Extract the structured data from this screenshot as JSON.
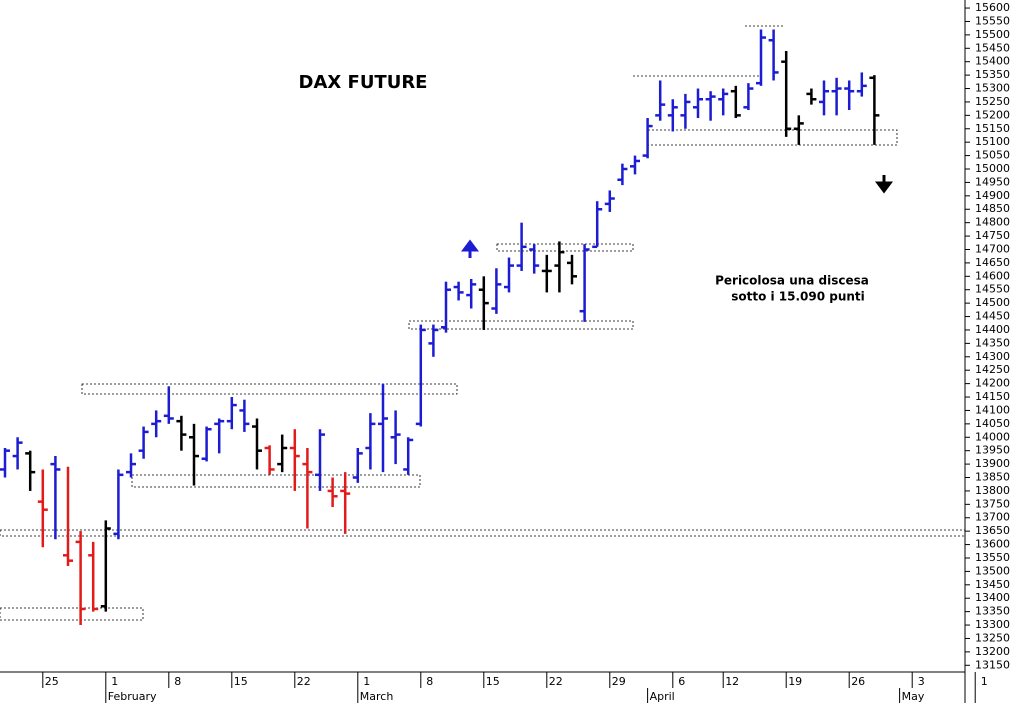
{
  "chart_data": {
    "type": "ohlc",
    "title": "DAX FUTURE",
    "annotation": [
      "Pericolosa una discesa",
      "sotto i 15.090 punti"
    ],
    "categories": [
      null,
      null,
      null,
      "25",
      null,
      null,
      null,
      null,
      "1",
      null,
      null,
      null,
      null,
      "8",
      null,
      null,
      null,
      null,
      "15",
      null,
      null,
      null,
      null,
      "22",
      null,
      null,
      null,
      null,
      "1",
      null,
      null,
      null,
      null,
      "8",
      null,
      null,
      null,
      null,
      "15",
      null,
      null,
      null,
      null,
      "22",
      null,
      null,
      null,
      null,
      "29",
      null,
      null,
      null,
      null,
      "6",
      null,
      null,
      null,
      "12",
      null,
      null,
      null,
      null,
      "19",
      null,
      null,
      null,
      null,
      "26",
      null,
      null,
      null,
      null,
      "3",
      null,
      null,
      null,
      null,
      "1"
    ],
    "months": [
      null,
      null,
      null,
      null,
      null,
      null,
      null,
      null,
      "February",
      null,
      null,
      null,
      null,
      null,
      null,
      null,
      null,
      null,
      null,
      null,
      null,
      null,
      null,
      null,
      null,
      null,
      null,
      null,
      "March",
      null,
      null,
      null,
      null,
      null,
      null,
      null,
      null,
      null,
      null,
      null,
      null,
      null,
      null,
      null,
      null,
      null,
      null,
      null,
      null,
      null,
      null,
      "April",
      null,
      null,
      null,
      null,
      null,
      null,
      null,
      null,
      null,
      null,
      null,
      null,
      null,
      null,
      null,
      null,
      null,
      null,
      null,
      "May",
      null,
      null,
      null,
      null,
      null
    ],
    "open": [
      13880,
      13930,
      13940,
      13760,
      13900,
      13560,
      13610,
      13560,
      13370,
      13640,
      13870,
      13950,
      14050,
      14080,
      14060,
      14000,
      13920,
      14050,
      14060,
      14100,
      14040,
      13960,
      13900,
      13960,
      13900,
      13860,
      13800,
      13800,
      13850,
      13960,
      14050,
      14000,
      13880,
      14050,
      14350,
      14410,
      14560,
      14530,
      14550,
      14480,
      14560,
      14640,
      14700,
      14620,
      14640,
      14650,
      14470,
      14710,
      14870,
      14960,
      15010,
      15050,
      15200,
      15200,
      15200,
      15230,
      15260,
      15260,
      15290,
      15230,
      15320,
      15480,
      15400,
      15150,
      15280,
      15250,
      15290,
      15300,
      15290,
      15340,
      null,
      null,
      null,
      null,
      null,
      null,
      null
    ],
    "high": [
      13960,
      14000,
      13950,
      13880,
      13930,
      13890,
      13650,
      13610,
      13690,
      13880,
      13940,
      14040,
      14100,
      14190,
      14080,
      14050,
      14040,
      14070,
      14150,
      14140,
      14070,
      13970,
      14010,
      14030,
      13960,
      14030,
      13850,
      13870,
      13960,
      14090,
      14200,
      14100,
      14000,
      14420,
      14420,
      14580,
      14580,
      14590,
      14600,
      14630,
      14670,
      14800,
      14720,
      14680,
      14730,
      14680,
      14720,
      14880,
      14920,
      15020,
      15050,
      15190,
      15330,
      15260,
      15280,
      15300,
      15290,
      15300,
      15310,
      15320,
      15520,
      15520,
      15440,
      15200,
      15300,
      15330,
      15340,
      15330,
      15360,
      15350,
      null,
      null,
      null,
      null,
      null,
      null,
      null
    ],
    "low": [
      13850,
      13880,
      13800,
      13590,
      13620,
      13520,
      13300,
      13350,
      13350,
      13620,
      13850,
      13920,
      14000,
      14050,
      13950,
      13820,
      13910,
      13940,
      14030,
      14020,
      13880,
      13860,
      13870,
      13800,
      13660,
      13800,
      13740,
      13640,
      13830,
      13880,
      13870,
      13900,
      13860,
      14040,
      14300,
      14390,
      14510,
      14480,
      14400,
      14460,
      14540,
      14620,
      14610,
      14540,
      14540,
      14570,
      14430,
      14710,
      14840,
      14940,
      14980,
      15040,
      15180,
      15140,
      15150,
      15190,
      15180,
      15200,
      15190,
      15220,
      15310,
      15330,
      15120,
      15090,
      15240,
      15200,
      15200,
      15220,
      15270,
      15090,
      null,
      null,
      null,
      null,
      null,
      null,
      null
    ],
    "close": [
      13950,
      13980,
      13870,
      13730,
      13880,
      13540,
      13360,
      13360,
      13660,
      13860,
      13900,
      14020,
      14060,
      14070,
      14010,
      13930,
      14030,
      14060,
      14120,
      14050,
      13950,
      13880,
      13960,
      13930,
      13870,
      14010,
      13780,
      13790,
      13940,
      14050,
      14070,
      14010,
      13990,
      14400,
      14400,
      14550,
      14540,
      14570,
      14500,
      14570,
      14640,
      14710,
      14640,
      14620,
      14690,
      14600,
      14700,
      14850,
      14890,
      15000,
      15030,
      15160,
      15240,
      15230,
      15250,
      15260,
      15270,
      15280,
      15200,
      15300,
      15490,
      15360,
      15150,
      15170,
      15260,
      15290,
      15300,
      15290,
      15310,
      15200,
      null,
      null,
      null,
      null,
      null,
      null,
      null
    ],
    "bar_colors": [
      "#1c1cd2",
      "#1c1cd2",
      "#000000",
      "#e31a1a",
      "#1c1cd2",
      "#e31a1a",
      "#e31a1a",
      "#e31a1a",
      "#000000",
      "#1c1cd2",
      "#1c1cd2",
      "#1c1cd2",
      "#1c1cd2",
      "#1c1cd2",
      "#000000",
      "#000000",
      "#1c1cd2",
      "#1c1cd2",
      "#1c1cd2",
      "#1c1cd2",
      "#000000",
      "#e31a1a",
      "#000000",
      "#e31a1a",
      "#e31a1a",
      "#1c1cd2",
      "#e31a1a",
      "#e31a1a",
      "#1c1cd2",
      "#1c1cd2",
      "#1c1cd2",
      "#1c1cd2",
      "#1c1cd2",
      "#1c1cd2",
      "#1c1cd2",
      "#1c1cd2",
      "#1c1cd2",
      "#1c1cd2",
      "#000000",
      "#1c1cd2",
      "#1c1cd2",
      "#1c1cd2",
      "#1c1cd2",
      "#000000",
      "#000000",
      "#000000",
      "#1c1cd2",
      "#1c1cd2",
      "#1c1cd2",
      "#1c1cd2",
      "#1c1cd2",
      "#1c1cd2",
      "#1c1cd2",
      "#1c1cd2",
      "#1c1cd2",
      "#1c1cd2",
      "#1c1cd2",
      "#1c1cd2",
      "#000000",
      "#1c1cd2",
      "#1c1cd2",
      "#1c1cd2",
      "#000000",
      "#000000",
      "#000000",
      "#1c1cd2",
      "#1c1cd2",
      "#1c1cd2",
      "#1c1cd2",
      "#000000",
      null,
      null,
      null,
      null,
      null,
      null,
      null
    ],
    "ylim": [
      13125,
      15630
    ],
    "yticks": [
      13150,
      13200,
      13250,
      13300,
      13350,
      13400,
      13450,
      13500,
      13550,
      13600,
      13650,
      13700,
      13750,
      13800,
      13850,
      13900,
      13950,
      14000,
      14050,
      14100,
      14150,
      14200,
      14250,
      14300,
      14350,
      14400,
      14450,
      14500,
      14550,
      14600,
      14650,
      14700,
      14750,
      14800,
      14850,
      14900,
      14950,
      15000,
      15050,
      15100,
      15150,
      15200,
      15250,
      15300,
      15350,
      15400,
      15450,
      15500,
      15550,
      15600
    ],
    "y_axis_side": "right"
  }
}
